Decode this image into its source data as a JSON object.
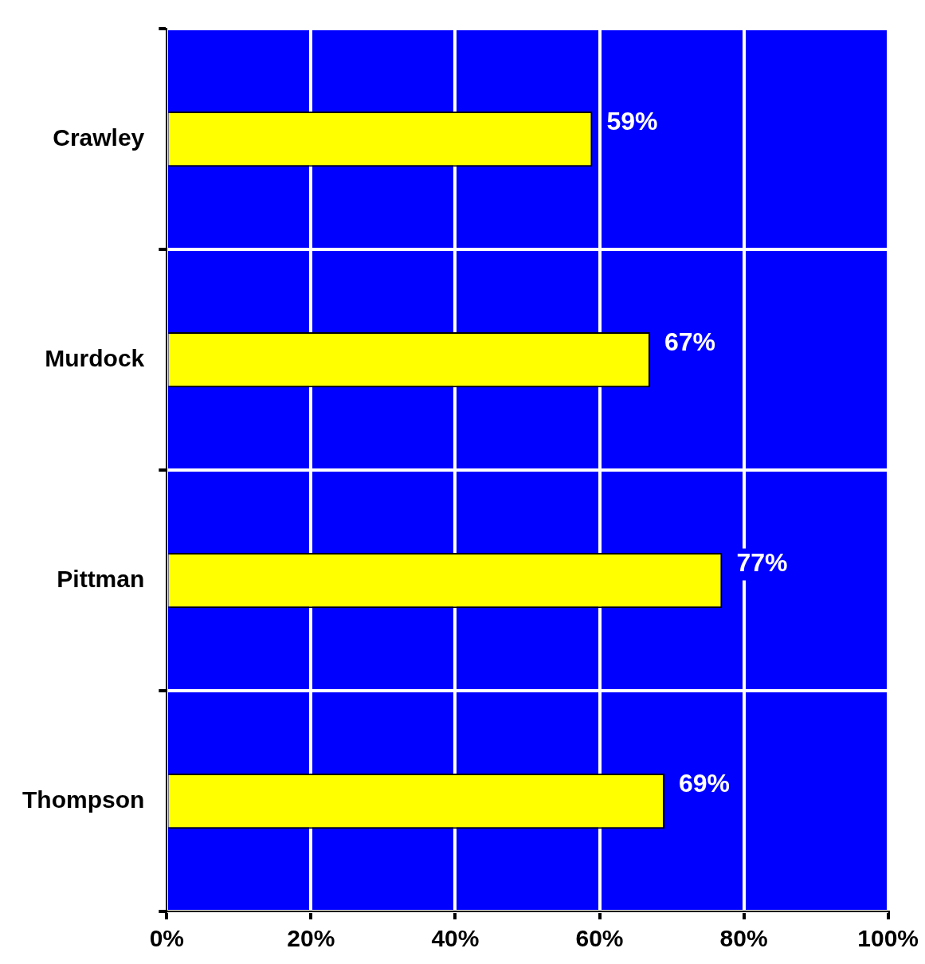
{
  "chart_data": {
    "type": "bar",
    "orientation": "horizontal",
    "categories": [
      "Crawley",
      "Murdock",
      "Pittman",
      "Thompson"
    ],
    "values": [
      59,
      67,
      77,
      69
    ],
    "color": "#ffff00",
    "value_labels": [
      "59%",
      "67%",
      "77%",
      "69%"
    ],
    "xlim": [
      0,
      100
    ],
    "xticks": [
      {
        "value": 0,
        "label": "0%"
      },
      {
        "value": 20,
        "label": "20%"
      },
      {
        "value": 40,
        "label": "40%"
      },
      {
        "value": 60,
        "label": "60%"
      },
      {
        "value": 80,
        "label": "80%"
      },
      {
        "value": 100,
        "label": "100%"
      }
    ],
    "grid": true,
    "legend": false
  }
}
